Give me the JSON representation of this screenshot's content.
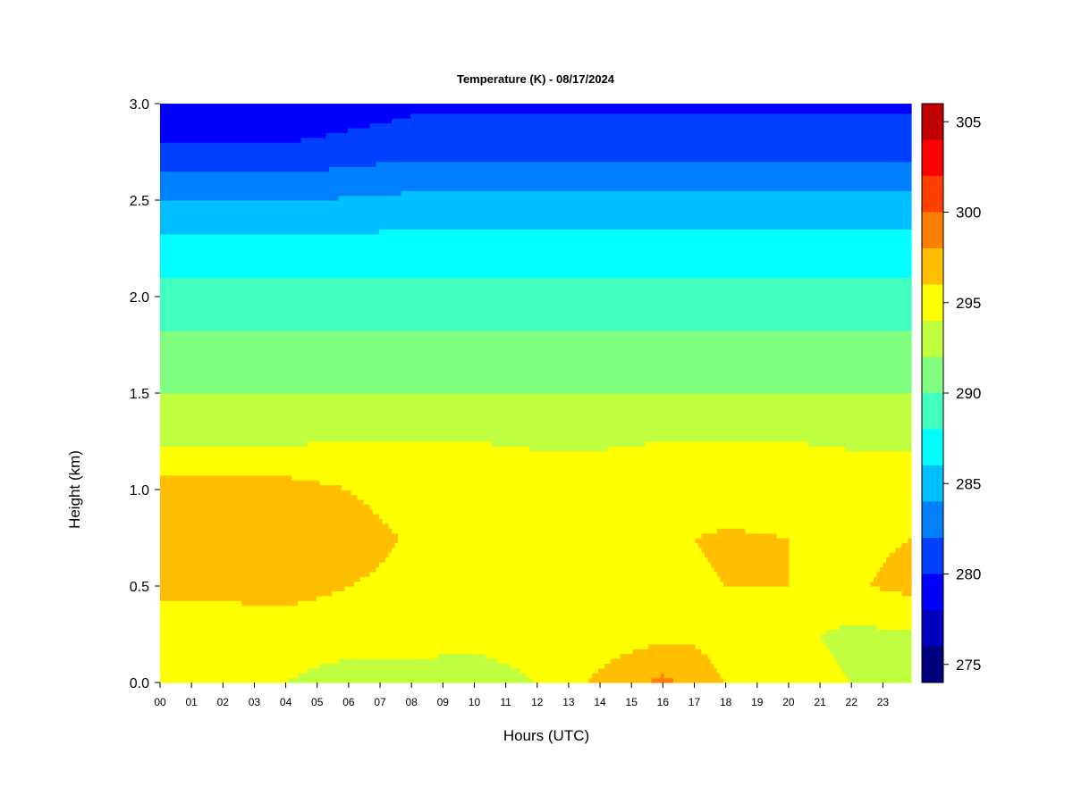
{
  "chart_data": {
    "type": "heatmap",
    "title": "Temperature (K) - 08/17/2024",
    "xlabel": "Hours (UTC)",
    "ylabel": "Height (km)",
    "x_range": [
      0,
      23.9
    ],
    "ylim": [
      0,
      3.0
    ],
    "x_ticks": [
      "00",
      "01",
      "02",
      "03",
      "04",
      "05",
      "06",
      "07",
      "08",
      "09",
      "10",
      "11",
      "12",
      "13",
      "14",
      "15",
      "16",
      "17",
      "18",
      "19",
      "20",
      "21",
      "22",
      "23"
    ],
    "y_ticks": [
      "0.0",
      "0.5",
      "1.0",
      "1.5",
      "2.0",
      "2.5",
      "3.0"
    ],
    "colorbar": {
      "range": [
        274,
        306
      ],
      "ticks": [
        "275",
        "280",
        "285",
        "290",
        "295",
        "300",
        "305"
      ],
      "levels": [
        274,
        276,
        278,
        280,
        282,
        284,
        286,
        288,
        290,
        292,
        294,
        296,
        298,
        300,
        302,
        304,
        306
      ],
      "colors": [
        "#00007f",
        "#0000bf",
        "#0000ff",
        "#0040ff",
        "#0080ff",
        "#00bfff",
        "#00ffff",
        "#40ffbf",
        "#80ff80",
        "#bfff40",
        "#ffff00",
        "#ffbf00",
        "#ff8000",
        "#ff4000",
        "#ff0000",
        "#bf0000",
        "#7f0000"
      ]
    },
    "profile_heights_km": [
      0.0,
      0.25,
      0.5,
      0.75,
      1.0,
      1.25,
      1.5,
      1.75,
      2.0,
      2.25,
      2.5,
      2.75,
      3.0
    ],
    "profiles_by_hour": [
      {
        "hour": 0,
        "temps_K": [
          294.5,
          294.0,
          297.0,
          297.5,
          297.0,
          293.8,
          292.0,
          290.5,
          288.8,
          286.8,
          284.0,
          280.5,
          278.0
        ]
      },
      {
        "hour": 2,
        "temps_K": [
          294.5,
          294.0,
          297.0,
          297.5,
          297.0,
          293.8,
          292.0,
          290.5,
          288.8,
          286.8,
          284.0,
          280.5,
          278.0
        ]
      },
      {
        "hour": 4,
        "temps_K": [
          294.0,
          294.5,
          297.0,
          297.5,
          296.8,
          293.8,
          292.0,
          290.5,
          288.8,
          286.8,
          284.0,
          280.5,
          278.0
        ]
      },
      {
        "hour": 6,
        "temps_K": [
          293.5,
          294.5,
          296.0,
          296.8,
          296.0,
          294.0,
          292.0,
          290.5,
          288.8,
          286.8,
          284.2,
          281.0,
          278.8
        ]
      },
      {
        "hour": 8,
        "temps_K": [
          293.5,
          294.5,
          295.5,
          295.8,
          295.2,
          294.0,
          292.0,
          290.5,
          288.8,
          287.0,
          284.5,
          281.5,
          279.5
        ]
      },
      {
        "hour": 10,
        "temps_K": [
          293.5,
          294.3,
          295.5,
          295.6,
          295.2,
          294.0,
          292.0,
          290.5,
          288.8,
          287.0,
          284.5,
          281.5,
          279.5
        ]
      },
      {
        "hour": 12,
        "temps_K": [
          294.0,
          294.5,
          295.5,
          295.6,
          295.0,
          293.8,
          292.0,
          290.5,
          288.8,
          287.0,
          284.5,
          281.5,
          279.5
        ]
      },
      {
        "hour": 14,
        "temps_K": [
          296.5,
          294.8,
          295.5,
          295.6,
          295.0,
          293.8,
          292.0,
          290.5,
          288.8,
          287.0,
          284.5,
          281.5,
          279.5
        ]
      },
      {
        "hour": 16,
        "temps_K": [
          298.5,
          295.5,
          295.6,
          295.8,
          295.0,
          294.0,
          292.0,
          290.5,
          288.8,
          287.0,
          284.5,
          281.5,
          279.5
        ]
      },
      {
        "hour": 17,
        "temps_K": [
          297.5,
          295.5,
          295.8,
          296.0,
          295.2,
          294.0,
          292.0,
          290.5,
          288.8,
          287.0,
          284.5,
          281.5,
          279.5
        ]
      },
      {
        "hour": 18,
        "temps_K": [
          296.0,
          294.8,
          296.0,
          296.2,
          295.2,
          294.0,
          292.0,
          290.5,
          288.8,
          287.0,
          284.5,
          281.5,
          279.5
        ]
      },
      {
        "hour": 20,
        "temps_K": [
          295.0,
          294.5,
          296.0,
          296.0,
          295.2,
          294.0,
          292.0,
          290.5,
          288.8,
          287.0,
          284.5,
          281.5,
          279.5
        ]
      },
      {
        "hour": 22,
        "temps_K": [
          294.0,
          293.5,
          295.8,
          295.6,
          295.0,
          293.8,
          292.0,
          290.5,
          288.8,
          287.0,
          284.5,
          281.5,
          279.5
        ]
      },
      {
        "hour": 23.9,
        "temps_K": [
          294.0,
          293.8,
          296.5,
          296.0,
          295.0,
          293.8,
          292.0,
          290.5,
          288.8,
          287.0,
          284.5,
          281.5,
          279.5
        ]
      }
    ]
  }
}
